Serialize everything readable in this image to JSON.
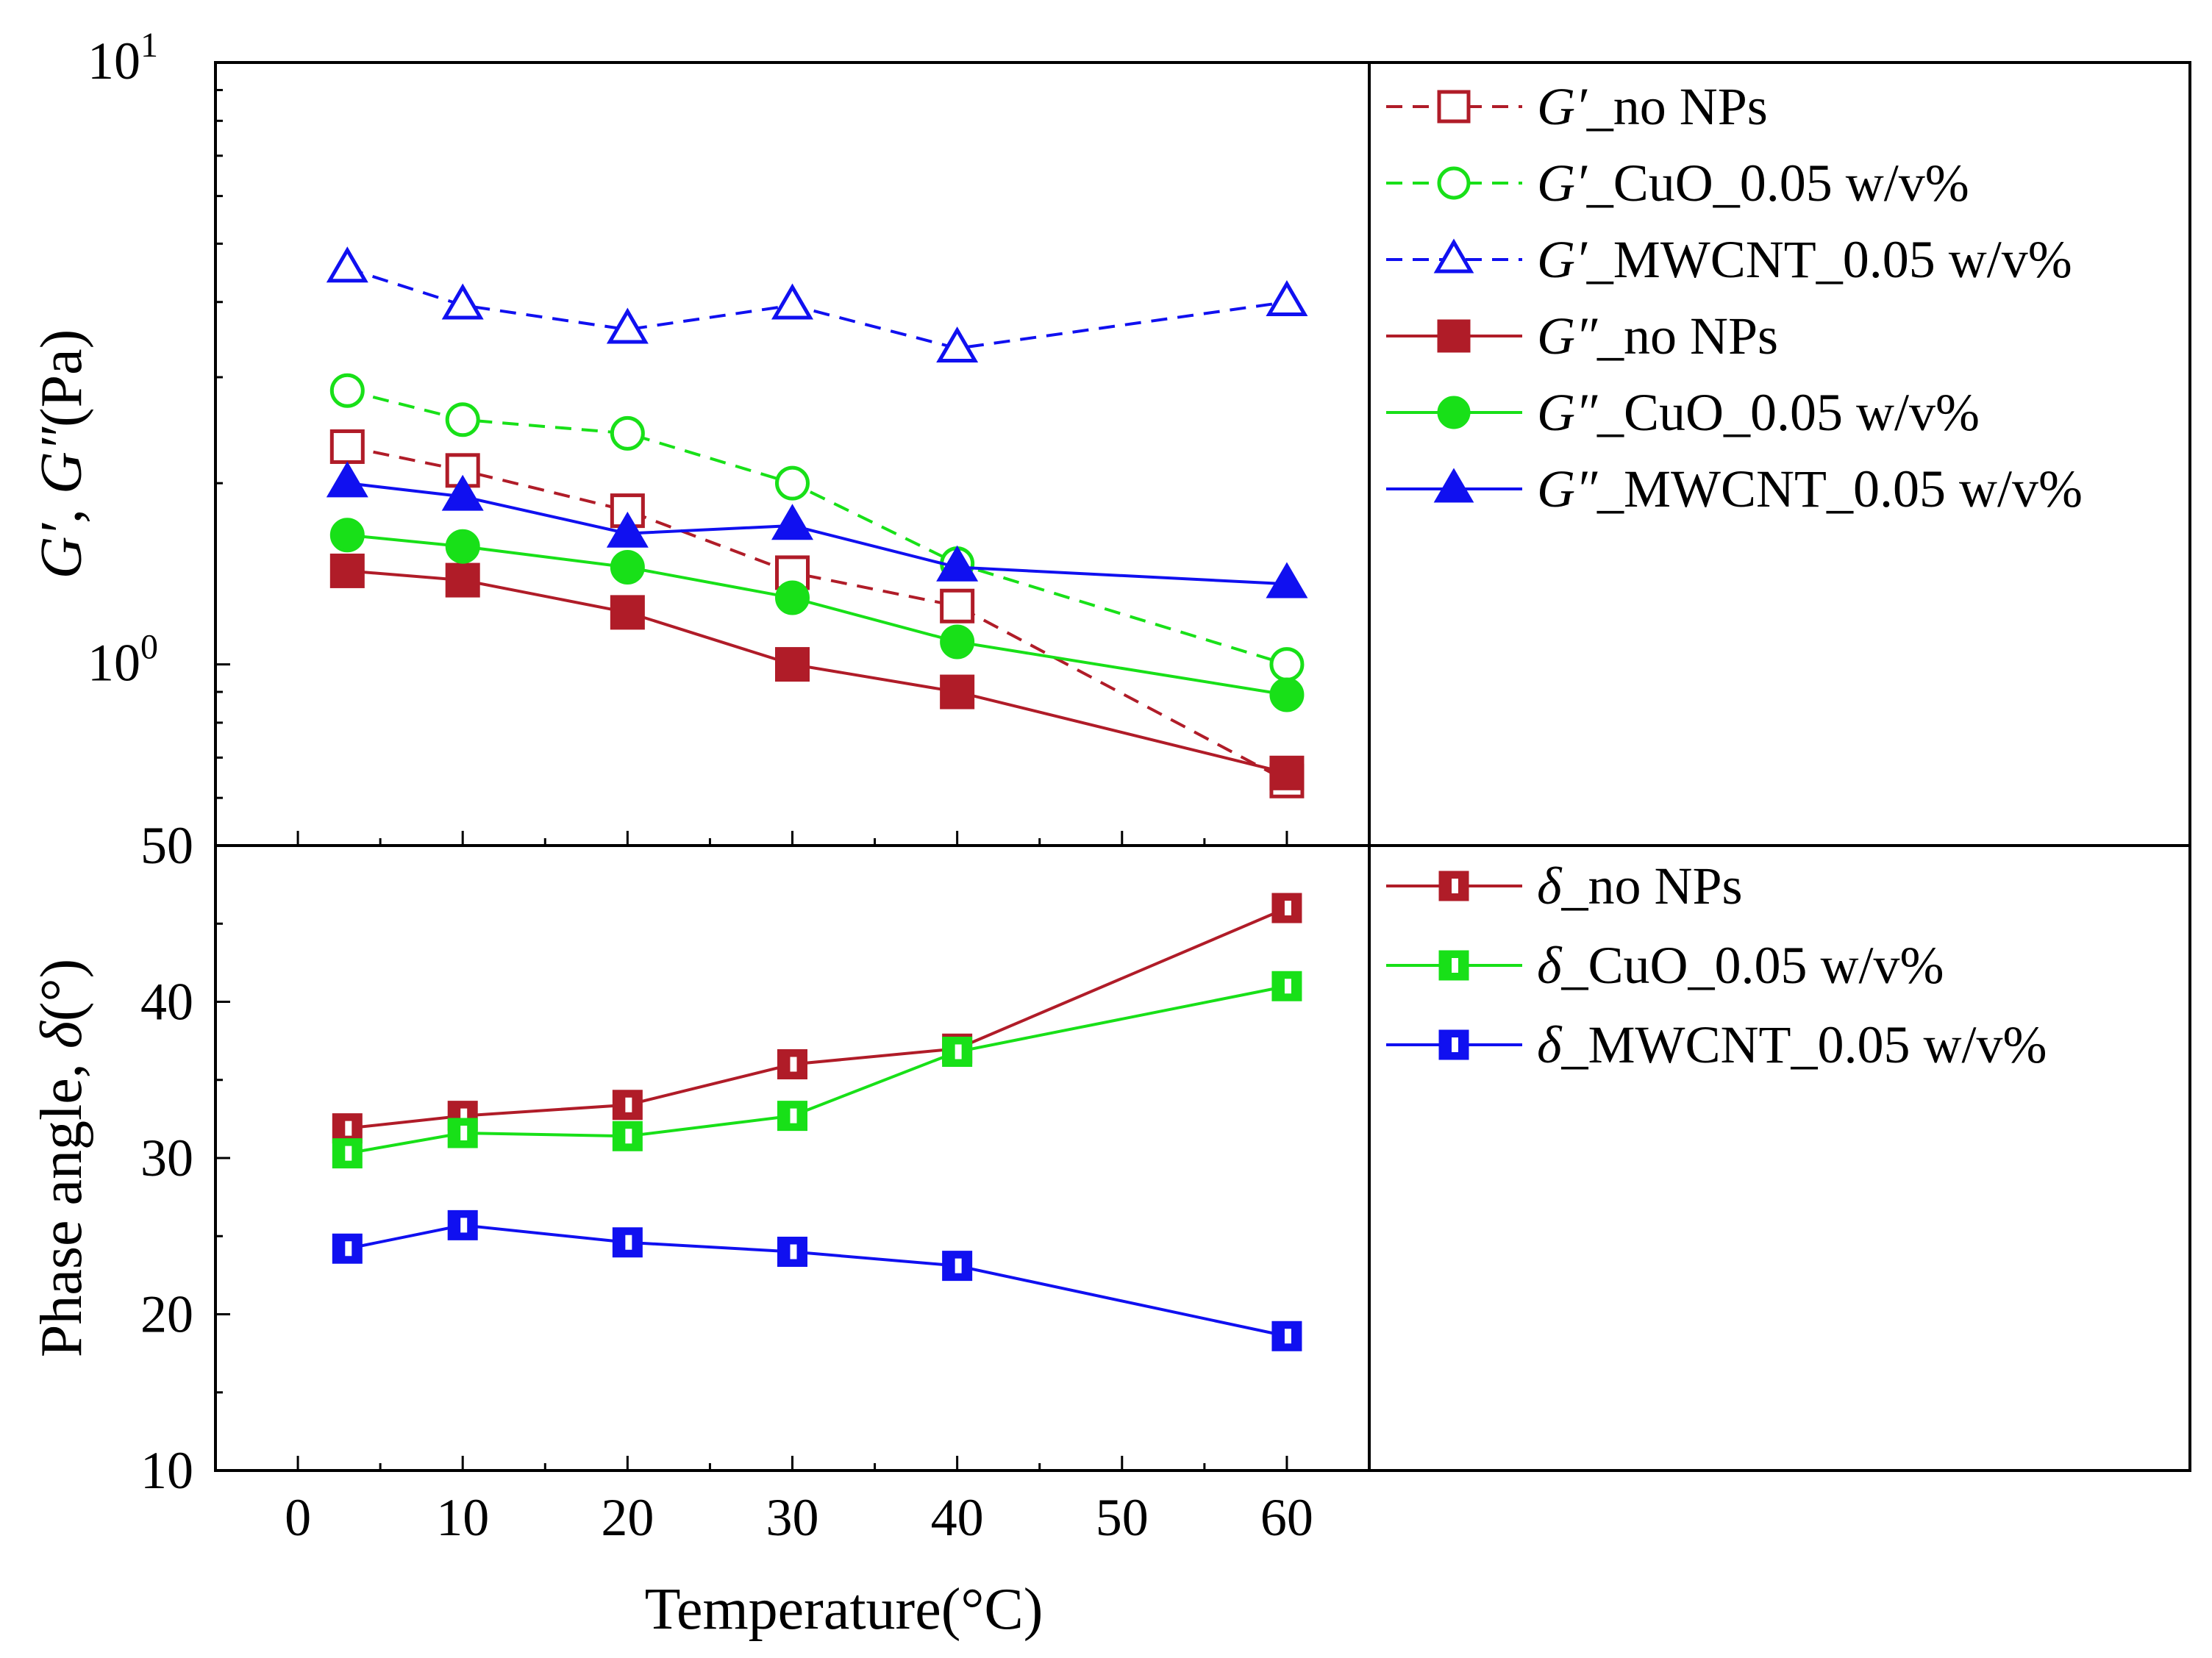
{
  "chart_data": [
    {
      "type": "line",
      "panel": "top",
      "yscale": "log",
      "ylabel": [
        "G′",
        ", ",
        "G″",
        "(Pa)"
      ],
      "ytick_labels": [
        {
          "value": 10,
          "base": "10",
          "exp": "1"
        },
        {
          "value": 1,
          "base": "10",
          "exp": "0"
        }
      ],
      "ylim": [
        0.5,
        10
      ],
      "xlim": [
        -5,
        65
      ],
      "x": [
        3,
        10,
        20,
        30,
        40,
        60
      ],
      "series": [
        {
          "name": "G′_no NPs",
          "sym": "G′",
          "rest": "_no NPs",
          "color": "#b01c28",
          "dashed": true,
          "marker": "square",
          "filled": false,
          "values": [
            2.3,
            2.1,
            1.8,
            1.42,
            1.25,
            0.64
          ]
        },
        {
          "name": "G′_CuO_0.05 w/v%",
          "sym": "G′",
          "rest": "_CuO_0.05 w/v%",
          "color": "#18e018",
          "dashed": true,
          "marker": "circle",
          "filled": false,
          "values": [
            2.85,
            2.55,
            2.42,
            2.0,
            1.47,
            1.0
          ]
        },
        {
          "name": "G′_MWCNT_0.05 w/v%",
          "sym": "G′",
          "rest": "_MWCNT_0.05 w/v%",
          "color": "#1010f0",
          "dashed": true,
          "marker": "triangle",
          "filled": false,
          "values": [
            4.55,
            3.95,
            3.6,
            3.95,
            3.35,
            4.0
          ]
        },
        {
          "name": "G″_no NPs",
          "sym": "G″",
          "rest": "_no NPs",
          "color": "#b01c28",
          "dashed": false,
          "marker": "square",
          "filled": true,
          "values": [
            1.43,
            1.38,
            1.22,
            1.0,
            0.9,
            0.66
          ]
        },
        {
          "name": "G″_CuO_0.05 w/v%",
          "sym": "G″",
          "rest": "_CuO_0.05 w/v%",
          "color": "#18e018",
          "dashed": false,
          "marker": "circle",
          "filled": true,
          "values": [
            1.64,
            1.57,
            1.45,
            1.29,
            1.09,
            0.89
          ]
        },
        {
          "name": "G″_MWCNT_0.05 w/v%",
          "sym": "G″",
          "rest": "_MWCNT_0.05 w/v%",
          "color": "#1010f0",
          "dashed": false,
          "marker": "triangle",
          "filled": true,
          "values": [
            2.0,
            1.9,
            1.65,
            1.7,
            1.45,
            1.36
          ]
        }
      ]
    },
    {
      "type": "line",
      "panel": "bottom",
      "yscale": "linear",
      "ylabel": [
        "Phase angle, ",
        "δ",
        "(°)"
      ],
      "xlabel": "Temperature(°C)",
      "ylim": [
        10,
        50
      ],
      "xlim": [
        -5,
        65
      ],
      "yticks": [
        10,
        20,
        30,
        40,
        50
      ],
      "xticks": [
        0,
        10,
        20,
        30,
        40,
        50,
        60
      ],
      "x": [
        3,
        10,
        20,
        30,
        40,
        60
      ],
      "series": [
        {
          "name": "δ_no NPs",
          "sym": "δ",
          "rest": "_no NPs",
          "color": "#b01c28",
          "marker": "half-square",
          "values": [
            31.9,
            32.7,
            33.4,
            36.0,
            37.0,
            46.0
          ]
        },
        {
          "name": "δ_CuO_0.05 w/v%",
          "sym": "δ",
          "rest": "_CuO_0.05 w/v%",
          "color": "#18e018",
          "marker": "half-square",
          "values": [
            30.3,
            31.6,
            31.4,
            32.7,
            36.8,
            41.0
          ]
        },
        {
          "name": "δ_MWCNT_0.05 w/v%",
          "sym": "δ",
          "rest": "_MWCNT_0.05 w/v%",
          "color": "#1010f0",
          "marker": "half-square",
          "values": [
            24.2,
            25.7,
            24.6,
            24.0,
            23.1,
            18.6
          ]
        }
      ]
    }
  ]
}
